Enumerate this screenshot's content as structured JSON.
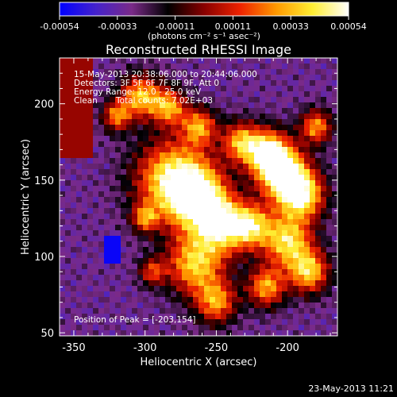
{
  "chart_data": {
    "type": "heatmap",
    "title": "Reconstructed RHESSI Image",
    "xlabel": "Heliocentric X (arcsec)",
    "ylabel": "Heliocentric Y (arcsec)",
    "xlim": [
      -360,
      -165
    ],
    "ylim": [
      48,
      230
    ],
    "x_ticks": [
      -350,
      -300,
      -250,
      -200
    ],
    "y_ticks": [
      50,
      100,
      150,
      200
    ],
    "colorbar": {
      "range": [
        -0.00054,
        0.00054
      ],
      "ticks": [
        "-0.00054",
        "-0.00033",
        "-0.00011",
        "0.00011",
        "0.00033",
        "0.00054"
      ],
      "unit_label": "(photons cm⁻² s⁻¹ asec⁻²)",
      "stops": [
        "#0000ff",
        "#4422cc",
        "#7a2a88",
        "#000000",
        "#880000",
        "#ee2200",
        "#ff9900",
        "#ffee33",
        "#ffffff"
      ]
    },
    "annotations": {
      "time_range": "15-May-2013 20:38:06.000 to 20:44:06.000",
      "detectors": "Detectors: 3F 5F 6F 7F 8F 9F, Att 0",
      "energy_range": "Energy Range: 12.0 - 25.0 keV",
      "method": "Clean",
      "total_counts": "Total counts: 7.02E+03",
      "peak_position": "Position of Peak = [-203,154]"
    },
    "peak": [
      -203,
      154
    ],
    "timestamp": "23-May-2013 11:21"
  }
}
